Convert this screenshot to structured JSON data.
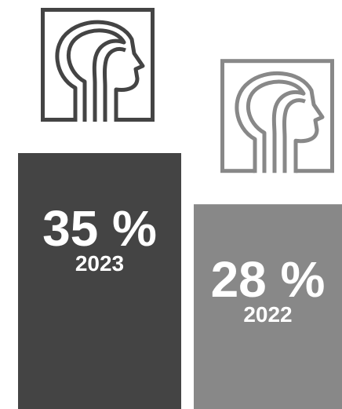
{
  "chart_data": {
    "type": "bar",
    "categories": [
      "2023",
      "2022"
    ],
    "values": [
      35,
      28
    ],
    "value_labels": [
      "35 %",
      "28 %"
    ],
    "colors": [
      "#444444",
      "#888888"
    ]
  }
}
